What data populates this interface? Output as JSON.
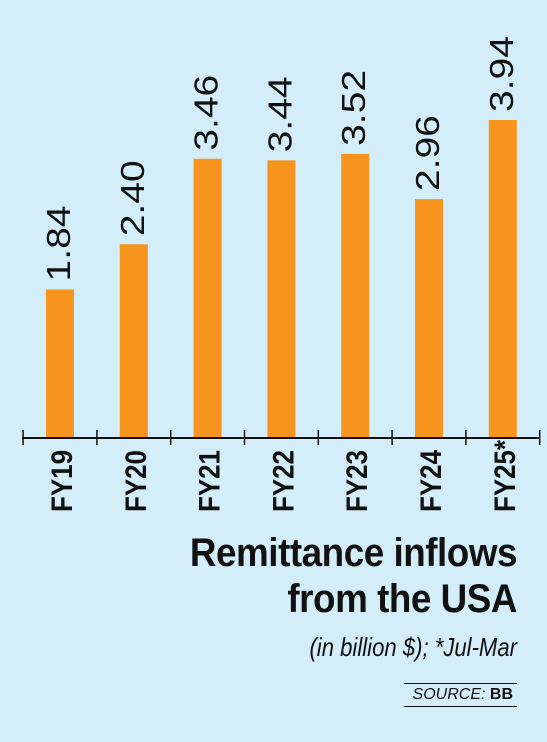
{
  "chart_data": {
    "type": "bar",
    "categories": [
      "FY19",
      "FY20",
      "FY21",
      "FY22",
      "FY23",
      "FY24",
      "FY25*"
    ],
    "values": [
      1.84,
      2.4,
      3.46,
      3.44,
      3.52,
      2.96,
      3.94
    ],
    "value_labels": [
      "1.84",
      "2.40",
      "3.46",
      "3.44",
      "3.52",
      "2.96",
      "3.94"
    ],
    "title_line1": "Remittance inflows",
    "title_line2": "from the USA",
    "subtitle": "(in billion $); *Jul-Mar",
    "ylim": [
      0,
      4.2
    ],
    "grid": false,
    "bar_color": "#f7941d"
  },
  "source": {
    "label": "SOURCE:",
    "value": "BB"
  },
  "colors": {
    "background": "#d4eef9",
    "bar": "#f7941d",
    "text": "#111111"
  }
}
